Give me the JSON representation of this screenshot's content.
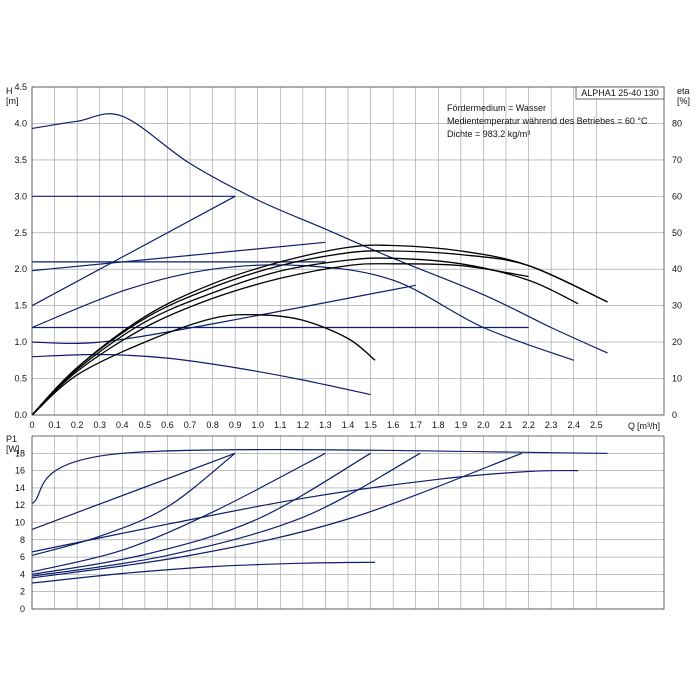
{
  "chart_data": [
    {
      "type": "line",
      "panel": "head",
      "model": "ALPHA1 25-40 130",
      "ylabel": "H",
      "yunit": "[m]",
      "y2label": "eta",
      "y2unit": "[%]",
      "xlabel": "Q",
      "xunit": "[m³/h]",
      "xlim": [
        0,
        2.8
      ],
      "ylim": [
        0,
        4.5
      ],
      "y2lim": [
        0,
        90
      ],
      "grid": true,
      "xticks": [
        "0",
        "0.1",
        "0.2",
        "0.3",
        "0.4",
        "0.5",
        "0.6",
        "0.7",
        "0.8",
        "0.9",
        "1.0",
        "1.1",
        "1.2",
        "1.3",
        "1.4",
        "1.5",
        "1.6",
        "1.7",
        "1.8",
        "1.9",
        "2.0",
        "2.1",
        "2.2",
        "2.3",
        "2.4",
        "2.5"
      ],
      "yticks": [
        "0.0",
        "0.5",
        "1.0",
        "1.5",
        "2.0",
        "2.5",
        "3.0",
        "3.5",
        "4.0",
        "4.5"
      ],
      "y2ticks": [
        "0",
        "10",
        "20",
        "30",
        "40",
        "50",
        "60",
        "70",
        "80"
      ],
      "notes": [
        "Fördermedium = Wasser",
        "Medientemperatur während des Betriebes = 60 °C",
        "Dichte = 983.2 kg/m³"
      ],
      "series": [
        {
          "name": "max-head-curve",
          "kind": "head",
          "x": [
            0,
            0.2,
            0.4,
            0.7,
            1.0,
            1.3,
            1.6,
            2.0,
            2.3,
            2.55
          ],
          "y": [
            3.93,
            4.03,
            4.1,
            3.45,
            2.95,
            2.55,
            2.15,
            1.65,
            1.2,
            0.85
          ]
        },
        {
          "name": "const-pressure-3.0",
          "kind": "head",
          "x": [
            0,
            0.9
          ],
          "y": [
            3.0,
            3.0
          ]
        },
        {
          "name": "prop-pressure-high",
          "kind": "head",
          "x": [
            0,
            0.9
          ],
          "y": [
            1.5,
            3.0
          ]
        },
        {
          "name": "const-pressure-2.1",
          "kind": "head",
          "x": [
            0,
            1.3
          ],
          "y": [
            2.1,
            2.1
          ]
        },
        {
          "name": "prop-pressure-2.1",
          "kind": "head",
          "x": [
            0,
            1.3
          ],
          "y": [
            1.98,
            2.37
          ]
        },
        {
          "name": "prop-pressure-mid",
          "kind": "head",
          "x": [
            0,
            0.42,
            0.8,
            1.2,
            1.6,
            2.0,
            2.4
          ],
          "y": [
            1.2,
            1.72,
            2.0,
            2.05,
            1.85,
            1.2,
            0.75
          ]
        },
        {
          "name": "const-pressure-1.2",
          "kind": "head",
          "x": [
            0,
            2.2
          ],
          "y": [
            1.2,
            1.2
          ]
        },
        {
          "name": "const-pressure-1.0",
          "kind": "head",
          "x": [
            0,
            0.3,
            0.8,
            1.7
          ],
          "y": [
            1.0,
            1.0,
            1.25,
            1.78
          ]
        },
        {
          "name": "low-speed-curve",
          "kind": "head",
          "x": [
            0,
            0.3,
            0.6,
            0.9,
            1.2,
            1.5
          ],
          "y": [
            0.8,
            0.83,
            0.78,
            0.65,
            0.48,
            0.28
          ]
        },
        {
          "name": "eta-1",
          "kind": "eta",
          "x": [
            0,
            0.2,
            0.5,
            0.8,
            1.1,
            1.4,
            1.6,
            1.9,
            2.2,
            2.55
          ],
          "y": [
            0,
            13,
            27,
            36,
            42,
            46,
            46.5,
            45,
            41,
            31
          ]
        },
        {
          "name": "eta-2",
          "kind": "eta",
          "x": [
            0,
            0.2,
            0.5,
            0.8,
            1.1,
            1.4,
            1.6,
            1.9,
            2.2,
            2.55
          ],
          "y": [
            0,
            13,
            26.5,
            35,
            41,
            44.5,
            45,
            44,
            41,
            31
          ]
        },
        {
          "name": "eta-3",
          "kind": "eta",
          "x": [
            0,
            0.2,
            0.5,
            0.8,
            1.1,
            1.4,
            1.6,
            1.9,
            2.2,
            2.42
          ],
          "y": [
            0,
            12.5,
            25.5,
            33.5,
            39.5,
            42.5,
            43,
            41.5,
            37,
            30.5
          ]
        },
        {
          "name": "eta-4",
          "kind": "eta",
          "x": [
            0,
            0.2,
            0.5,
            0.8,
            1.1,
            1.4,
            1.6,
            1.9,
            2.2
          ],
          "y": [
            0,
            12,
            24,
            32,
            37.5,
            41,
            41.5,
            41,
            38
          ]
        },
        {
          "name": "eta-5",
          "kind": "eta",
          "x": [
            0,
            0.2,
            0.5,
            0.8,
            1.0,
            1.2,
            1.4,
            1.52
          ],
          "y": [
            0,
            11,
            20,
            26.5,
            27.5,
            26,
            21,
            15
          ]
        }
      ]
    },
    {
      "type": "line",
      "panel": "power",
      "ylabel": "P1",
      "yunit": "[W]",
      "xlim": [
        0,
        2.8
      ],
      "ylim": [
        0,
        20
      ],
      "grid": true,
      "yticks": [
        "0",
        "2",
        "4",
        "6",
        "8",
        "10",
        "12",
        "14",
        "16",
        "18"
      ],
      "series": [
        {
          "name": "p1-max",
          "x": [
            0,
            0.4,
            2.55
          ],
          "y": [
            12.2,
            18,
            18
          ]
        },
        {
          "name": "p1-2",
          "x": [
            0,
            0.9
          ],
          "y": [
            9.2,
            18
          ]
        },
        {
          "name": "p1-3",
          "x": [
            0,
            0.3,
            0.6,
            0.9
          ],
          "y": [
            6.2,
            8.4,
            11.8,
            18
          ]
        },
        {
          "name": "p1-4",
          "x": [
            0,
            0.4,
            0.8,
            1.3
          ],
          "y": [
            4.3,
            6.8,
            11.2,
            18
          ]
        },
        {
          "name": "p1-5",
          "x": [
            0,
            0.5,
            1.0,
            1.5
          ],
          "y": [
            4.0,
            6.3,
            10.4,
            18
          ]
        },
        {
          "name": "p1-6",
          "x": [
            0,
            0.6,
            1.2,
            1.72
          ],
          "y": [
            3.8,
            6.2,
            10.6,
            18
          ]
        },
        {
          "name": "p1-7",
          "x": [
            0,
            0.7,
            1.4,
            2.17
          ],
          "y": [
            3.6,
            6.2,
            10.4,
            18
          ]
        },
        {
          "name": "p1-8",
          "x": [
            0,
            0.6,
            1.2,
            1.8,
            2.2,
            2.42
          ],
          "y": [
            6.6,
            9.8,
            12.8,
            15.0,
            15.9,
            16.0
          ]
        },
        {
          "name": "p1-9",
          "x": [
            0,
            0.4,
            0.8,
            1.2,
            1.52
          ],
          "y": [
            3.0,
            4.1,
            4.9,
            5.3,
            5.4
          ]
        }
      ]
    }
  ]
}
